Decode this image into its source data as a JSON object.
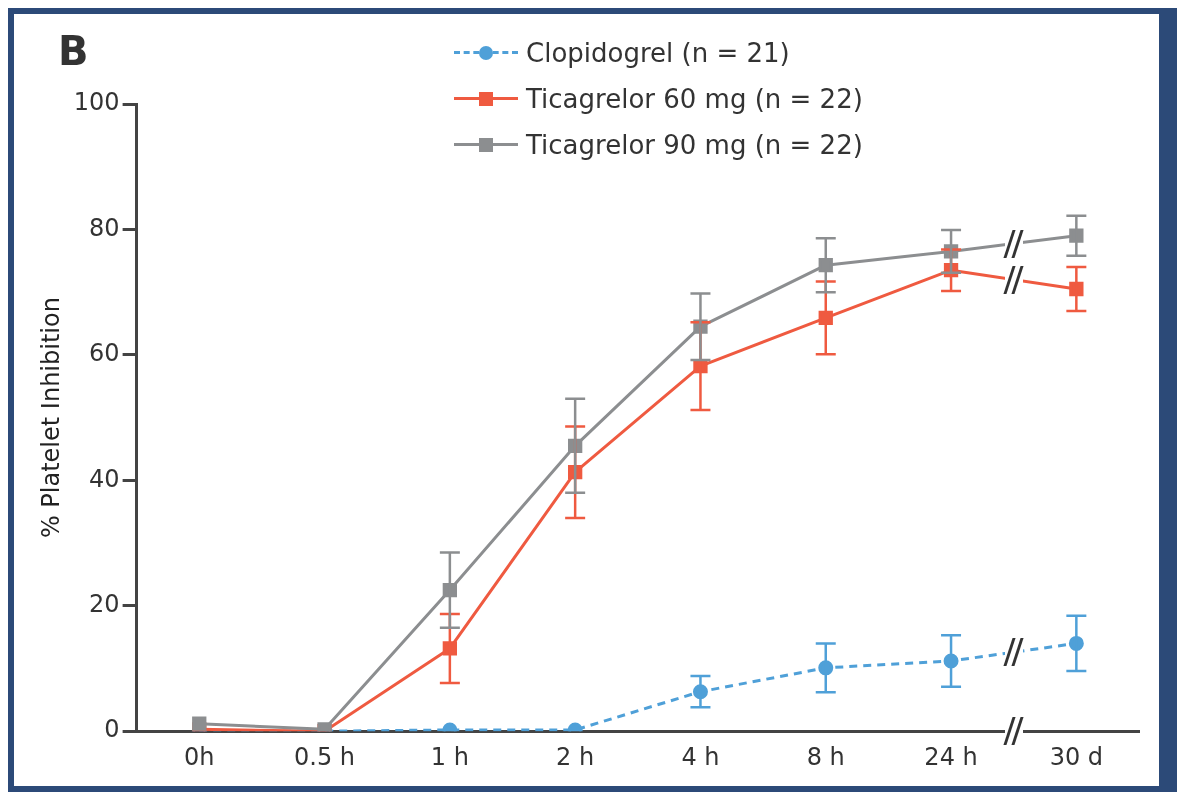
{
  "chart_data": {
    "type": "line",
    "ylabel": "% Platelet Inhibition",
    "annotations": [
      "B"
    ],
    "categories": [
      "0h",
      "0.5 h",
      "1 h",
      "2 h",
      "4 h",
      "8 h",
      "24 h",
      "30 d"
    ],
    "ylim": [
      0,
      100
    ],
    "yticks": [
      0,
      20,
      40,
      60,
      80,
      100
    ],
    "grid": false,
    "legend": "top",
    "series": [
      {
        "name": "Clopidogrel (n = 21)",
        "color": "#4fa0d8",
        "marker": "circle",
        "line_style": "dashed",
        "values": [
          0,
          0,
          0.2,
          0.2,
          6.3,
          10.1,
          11.2,
          14
        ],
        "errors": [
          null,
          null,
          null,
          null,
          2.5,
          3.9,
          4.1,
          4.4
        ]
      },
      {
        "name": "Ticagrelor 60 mg (n = 22)",
        "color": "#ef5a40",
        "marker": "square",
        "line_style": "solid",
        "values": [
          0.3,
          0,
          13.2,
          41.3,
          58.2,
          65.9,
          73.5,
          70.5
        ],
        "errors": [
          null,
          null,
          5.5,
          7.3,
          7,
          5.8,
          3.3,
          3.5
        ]
      },
      {
        "name": "Ticagrelor 90 mg (n = 22)",
        "color": "#8c8e90",
        "marker": "square",
        "line_style": "solid",
        "values": [
          1.2,
          0.3,
          22.5,
          45.5,
          64.5,
          74.3,
          76.5,
          79
        ],
        "errors": [
          null,
          null,
          6,
          7.5,
          5.3,
          4.3,
          3.4,
          3.2
        ]
      }
    ]
  }
}
